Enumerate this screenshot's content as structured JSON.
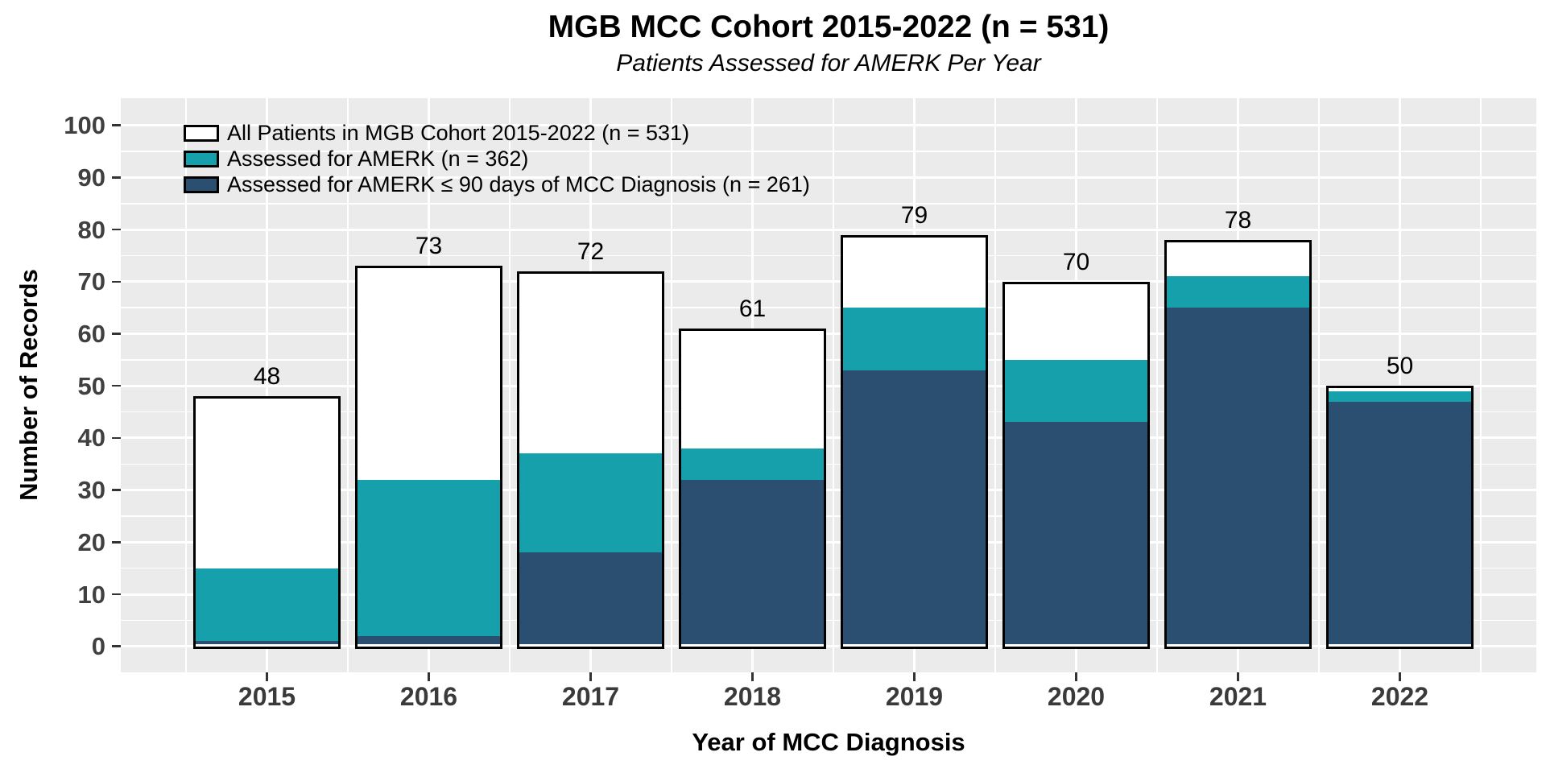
{
  "title": "MGB MCC Cohort 2015-2022 (n = 531)",
  "subtitle": "Patients Assessed for AMERK Per Year",
  "chart_data": {
    "type": "bar",
    "variant": "overlaid-stack",
    "categories": [
      "2015",
      "2016",
      "2017",
      "2018",
      "2019",
      "2020",
      "2021",
      "2022"
    ],
    "series": [
      {
        "name": "All Patients in MGB Cohort 2015-2022 (n = 531)",
        "color": "#FFFFFF",
        "values": [
          48,
          73,
          72,
          61,
          79,
          70,
          78,
          50
        ]
      },
      {
        "name": "Assessed for AMERK (n = 362)",
        "color": "#16A0AB",
        "values": [
          15,
          32,
          37,
          38,
          65,
          55,
          71,
          49
        ]
      },
      {
        "name": "Assessed for AMERK ≤ 90 days of MCC Diagnosis (n = 261)",
        "color": "#2B4F70",
        "values": [
          1,
          2,
          18,
          32,
          53,
          43,
          65,
          47
        ]
      }
    ],
    "bar_labels": [
      "48",
      "73",
      "72",
      "61",
      "79",
      "70",
      "78",
      "50"
    ],
    "title": "MGB MCC Cohort 2015-2022 (n = 531)",
    "subtitle": "Patients Assessed for AMERK Per Year",
    "xlabel": "Year of MCC Diagnosis",
    "ylabel": "Number of Records",
    "ylim": [
      0,
      100
    ],
    "yticks": [
      "0",
      "10",
      "20",
      "30",
      "40",
      "50",
      "60",
      "70",
      "80",
      "90",
      "100"
    ],
    "grid": "white major every 10 and minor every 5 on gray panel; vertical major at category centers, minor at category boundaries",
    "legend_position": "inside top-left",
    "colors": {
      "panel_background": "#EBEBEB",
      "gridline": "#FFFFFF",
      "bar_border": "#000000",
      "tick_label": "#404040",
      "text": "#000000"
    }
  }
}
